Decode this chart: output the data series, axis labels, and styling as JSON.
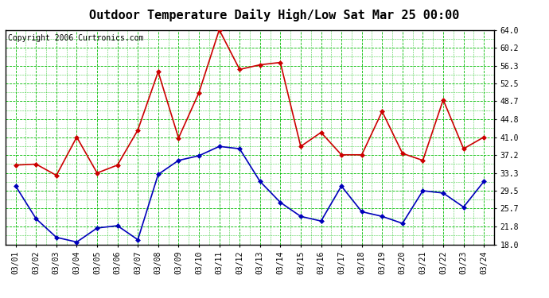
{
  "title": "Outdoor Temperature Daily High/Low Sat Mar 25 00:00",
  "copyright": "Copyright 2006 Curtronics.com",
  "x_labels": [
    "03/01",
    "03/02",
    "03/03",
    "03/04",
    "03/05",
    "03/06",
    "03/07",
    "03/08",
    "03/09",
    "03/10",
    "03/11",
    "03/12",
    "03/13",
    "03/14",
    "03/15",
    "03/16",
    "03/17",
    "03/18",
    "03/19",
    "03/20",
    "03/21",
    "03/22",
    "03/23",
    "03/24"
  ],
  "high_values": [
    35.0,
    35.2,
    32.8,
    41.0,
    33.3,
    35.0,
    42.5,
    55.0,
    40.8,
    50.5,
    64.0,
    55.5,
    56.5,
    57.0,
    39.0,
    42.0,
    37.2,
    37.2,
    46.5,
    37.5,
    36.0,
    49.0,
    38.5,
    41.0
  ],
  "low_values": [
    30.5,
    23.5,
    19.5,
    18.5,
    21.5,
    22.0,
    19.0,
    33.0,
    36.0,
    37.0,
    39.0,
    38.5,
    31.5,
    27.0,
    24.0,
    23.0,
    30.5,
    25.0,
    24.0,
    22.5,
    29.5,
    29.0,
    26.0,
    31.5
  ],
  "high_color": "#cc0000",
  "low_color": "#0000bb",
  "bg_color": "#ffffff",
  "plot_bg_color": "#ffffff",
  "grid_color": "#00bb00",
  "border_color": "#000000",
  "yticks": [
    18.0,
    21.8,
    25.7,
    29.5,
    33.3,
    37.2,
    41.0,
    44.8,
    48.7,
    52.5,
    56.3,
    60.2,
    64.0
  ],
  "ymin": 18.0,
  "ymax": 64.0,
  "title_fontsize": 11,
  "copyright_fontsize": 7,
  "tick_fontsize": 7,
  "markersize": 3,
  "linewidth": 1.2
}
